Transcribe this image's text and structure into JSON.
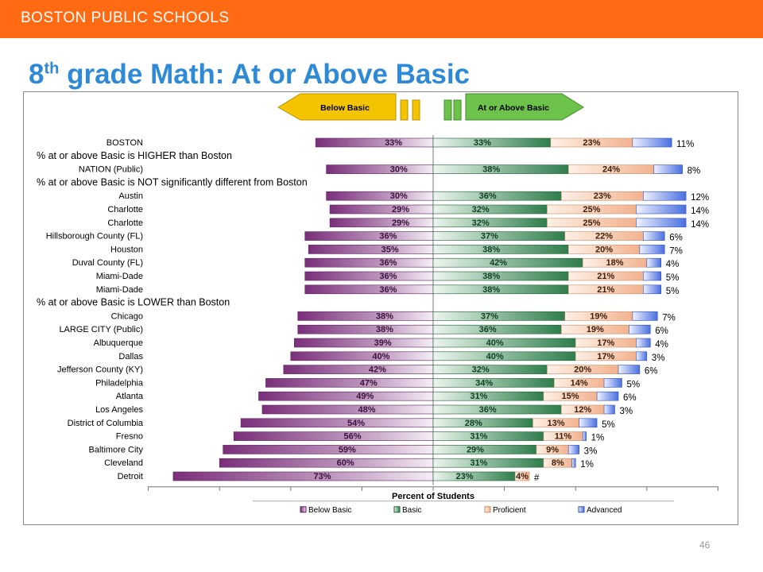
{
  "header": {
    "banner": "BOSTON PUBLIC SCHOOLS"
  },
  "slide": {
    "title_main": "8",
    "title_sup": "th",
    "title_rest": " grade Math: At or Above Basic",
    "page_number": "46"
  },
  "arrows": {
    "left": "Below Basic",
    "right": "At or Above Basic"
  },
  "colors": {
    "banner": "#ff6a13",
    "title": "#2e8ad6",
    "below_basic": "#7a2f7a",
    "basic": "#2f7d4c",
    "proficient": "#f3b28e",
    "advanced": "#4a6fe0",
    "arrow_left": "#f5c400",
    "arrow_right": "#6cc24a"
  },
  "chart_data": {
    "type": "bar",
    "orientation": "horizontal-diverging",
    "xlabel": "Percent of Students",
    "grid": false,
    "legend": {
      "placement": "bottom",
      "entries": [
        "Below Basic",
        "Basic",
        "Proficient",
        "Advanced"
      ]
    },
    "rows": [
      {
        "kind": "entity",
        "label": "BOSTON",
        "below": 33,
        "basic": 33,
        "proficient": 23,
        "advanced": 11,
        "below_text": "33%",
        "basic_text": "33%",
        "proficient_text": "23%",
        "advanced_text": "11%"
      },
      {
        "kind": "group",
        "label": "% at or above Basic is HIGHER than Boston"
      },
      {
        "kind": "entity",
        "label": "NATION (Public)",
        "below": 30,
        "basic": 38,
        "proficient": 24,
        "advanced": 8,
        "below_text": "30%",
        "basic_text": "38%",
        "proficient_text": "24%",
        "advanced_text": "8%"
      },
      {
        "kind": "group",
        "label": "% at or above Basic is NOT significantly different from Boston"
      },
      {
        "kind": "entity",
        "label": "Austin",
        "below": 30,
        "basic": 36,
        "proficient": 23,
        "advanced": 12,
        "below_text": "30%",
        "basic_text": "36%",
        "proficient_text": "23%",
        "advanced_text": "12%"
      },
      {
        "kind": "entity",
        "label": "Charlotte",
        "below": 29,
        "basic": 32,
        "proficient": 25,
        "advanced": 14,
        "below_text": "29%",
        "basic_text": "32%",
        "proficient_text": "25%",
        "advanced_text": "14%"
      },
      {
        "kind": "entity",
        "label": "Charlotte",
        "below": 29,
        "basic": 32,
        "proficient": 25,
        "advanced": 14,
        "below_text": "29%",
        "basic_text": "32%",
        "proficient_text": "25%",
        "advanced_text": "14%"
      },
      {
        "kind": "entity",
        "label": "Hillsborough County (FL)",
        "below": 36,
        "basic": 37,
        "proficient": 22,
        "advanced": 6,
        "below_text": "36%",
        "basic_text": "37%",
        "proficient_text": "22%",
        "advanced_text": "6%"
      },
      {
        "kind": "entity",
        "label": "Houston",
        "below": 35,
        "basic": 38,
        "proficient": 20,
        "advanced": 7,
        "below_text": "35%",
        "basic_text": "38%",
        "proficient_text": "20%",
        "advanced_text": "7%"
      },
      {
        "kind": "entity",
        "label": "Duval County (FL)",
        "below": 36,
        "basic": 42,
        "proficient": 18,
        "advanced": 4,
        "below_text": "36%",
        "basic_text": "42%",
        "proficient_text": "18%",
        "advanced_text": "4%"
      },
      {
        "kind": "entity",
        "label": "Miami-Dade",
        "below": 36,
        "basic": 38,
        "proficient": 21,
        "advanced": 5,
        "below_text": "36%",
        "basic_text": "38%",
        "proficient_text": "21%",
        "advanced_text": "5%"
      },
      {
        "kind": "entity",
        "label": "Miami-Dade",
        "below": 36,
        "basic": 38,
        "proficient": 21,
        "advanced": 5,
        "below_text": "36%",
        "basic_text": "38%",
        "proficient_text": "21%",
        "advanced_text": "5%"
      },
      {
        "kind": "group",
        "label": "% at or above Basic is LOWER than Boston"
      },
      {
        "kind": "entity",
        "label": "Chicago",
        "below": 38,
        "basic": 37,
        "proficient": 19,
        "advanced": 7,
        "below_text": "38%",
        "basic_text": "37%",
        "proficient_text": "19%",
        "advanced_text": "7%"
      },
      {
        "kind": "entity",
        "label": "LARGE CITY (Public)",
        "below": 38,
        "basic": 36,
        "proficient": 19,
        "advanced": 6,
        "below_text": "38%",
        "basic_text": "36%",
        "proficient_text": "19%",
        "advanced_text": "6%"
      },
      {
        "kind": "entity",
        "label": "Albuquerque",
        "below": 39,
        "basic": 40,
        "proficient": 17,
        "advanced": 4,
        "below_text": "39%",
        "basic_text": "40%",
        "proficient_text": "17%",
        "advanced_text": "4%"
      },
      {
        "kind": "entity",
        "label": "Dallas",
        "below": 40,
        "basic": 40,
        "proficient": 17,
        "advanced": 3,
        "below_text": "40%",
        "basic_text": "40%",
        "proficient_text": "17%",
        "advanced_text": "3%"
      },
      {
        "kind": "entity",
        "label": "Jefferson County (KY)",
        "below": 42,
        "basic": 32,
        "proficient": 20,
        "advanced": 6,
        "below_text": "42%",
        "basic_text": "32%",
        "proficient_text": "20%",
        "advanced_text": "6%"
      },
      {
        "kind": "entity",
        "label": "Philadelphia",
        "below": 47,
        "basic": 34,
        "proficient": 14,
        "advanced": 5,
        "below_text": "47%",
        "basic_text": "34%",
        "proficient_text": "14%",
        "advanced_text": "5%"
      },
      {
        "kind": "entity",
        "label": "Atlanta",
        "below": 49,
        "basic": 31,
        "proficient": 15,
        "advanced": 6,
        "below_text": "49%",
        "basic_text": "31%",
        "proficient_text": "15%",
        "advanced_text": "6%"
      },
      {
        "kind": "entity",
        "label": "Los Angeles",
        "below": 48,
        "basic": 36,
        "proficient": 12,
        "advanced": 3,
        "below_text": "48%",
        "basic_text": "36%",
        "proficient_text": "12%",
        "advanced_text": "3%"
      },
      {
        "kind": "entity",
        "label": "District of Columbia",
        "below": 54,
        "basic": 28,
        "proficient": 13,
        "advanced": 5,
        "below_text": "54%",
        "basic_text": "28%",
        "proficient_text": "13%",
        "advanced_text": "5%"
      },
      {
        "kind": "entity",
        "label": "Fresno",
        "below": 56,
        "basic": 31,
        "proficient": 11,
        "advanced": 1,
        "below_text": "56%",
        "basic_text": "31%",
        "proficient_text": "11%",
        "advanced_text": "1%"
      },
      {
        "kind": "entity",
        "label": "Baltimore City",
        "below": 59,
        "basic": 29,
        "proficient": 9,
        "advanced": 3,
        "below_text": "59%",
        "basic_text": "29%",
        "proficient_text": "9%",
        "advanced_text": "3%"
      },
      {
        "kind": "entity",
        "label": "Cleveland",
        "below": 60,
        "basic": 31,
        "proficient": 8,
        "advanced": 1,
        "below_text": "60%",
        "basic_text": "31%",
        "proficient_text": "8%",
        "advanced_text": "1%"
      },
      {
        "kind": "entity",
        "label": "Detroit",
        "below": 73,
        "basic": 23,
        "proficient": 4,
        "advanced": 0,
        "below_text": "73%",
        "basic_text": "23%",
        "proficient_text": "4%",
        "advanced_text": "#"
      }
    ]
  }
}
